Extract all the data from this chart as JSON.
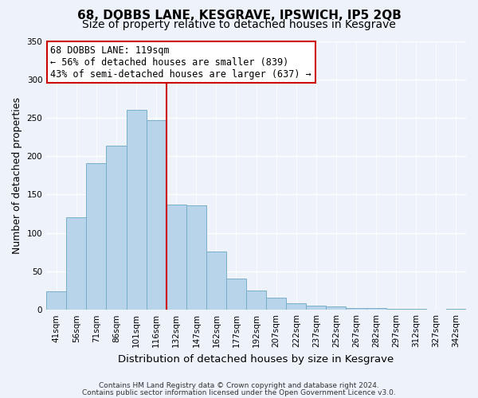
{
  "title": "68, DOBBS LANE, KESGRAVE, IPSWICH, IP5 2QB",
  "subtitle": "Size of property relative to detached houses in Kesgrave",
  "xlabel": "Distribution of detached houses by size in Kesgrave",
  "ylabel": "Number of detached properties",
  "bar_labels": [
    "41sqm",
    "56sqm",
    "71sqm",
    "86sqm",
    "101sqm",
    "116sqm",
    "132sqm",
    "147sqm",
    "162sqm",
    "177sqm",
    "192sqm",
    "207sqm",
    "222sqm",
    "237sqm",
    "252sqm",
    "267sqm",
    "282sqm",
    "297sqm",
    "312sqm",
    "327sqm",
    "342sqm"
  ],
  "bar_values": [
    24,
    120,
    191,
    214,
    260,
    247,
    137,
    136,
    76,
    41,
    25,
    16,
    8,
    5,
    4,
    2,
    2,
    1,
    1,
    0,
    1
  ],
  "bar_color": "#b8d4ea",
  "bar_edge_color": "#7aaec8",
  "vline_x": 5.5,
  "vline_color": "#cc0000",
  "annotation_line1": "68 DOBBS LANE: 119sqm",
  "annotation_line2": "← 56% of detached houses are smaller (839)",
  "annotation_line3": "43% of semi-detached houses are larger (637) →",
  "annotation_box_color": "#ffffff",
  "annotation_border_color": "#cc0000",
  "ylim": [
    0,
    350
  ],
  "yticks": [
    0,
    50,
    100,
    150,
    200,
    250,
    300,
    350
  ],
  "footnote1": "Contains HM Land Registry data © Crown copyright and database right 2024.",
  "footnote2": "Contains public sector information licensed under the Open Government Licence v3.0.",
  "bg_color": "#eef2fb",
  "plot_bg_color": "#eef2fb",
  "grid_color": "#ffffff",
  "title_fontsize": 11,
  "subtitle_fontsize": 10,
  "ylabel_fontsize": 9,
  "xlabel_fontsize": 9.5,
  "tick_fontsize": 7.5,
  "annotation_fontsize": 8.5,
  "footnote_fontsize": 6.5
}
